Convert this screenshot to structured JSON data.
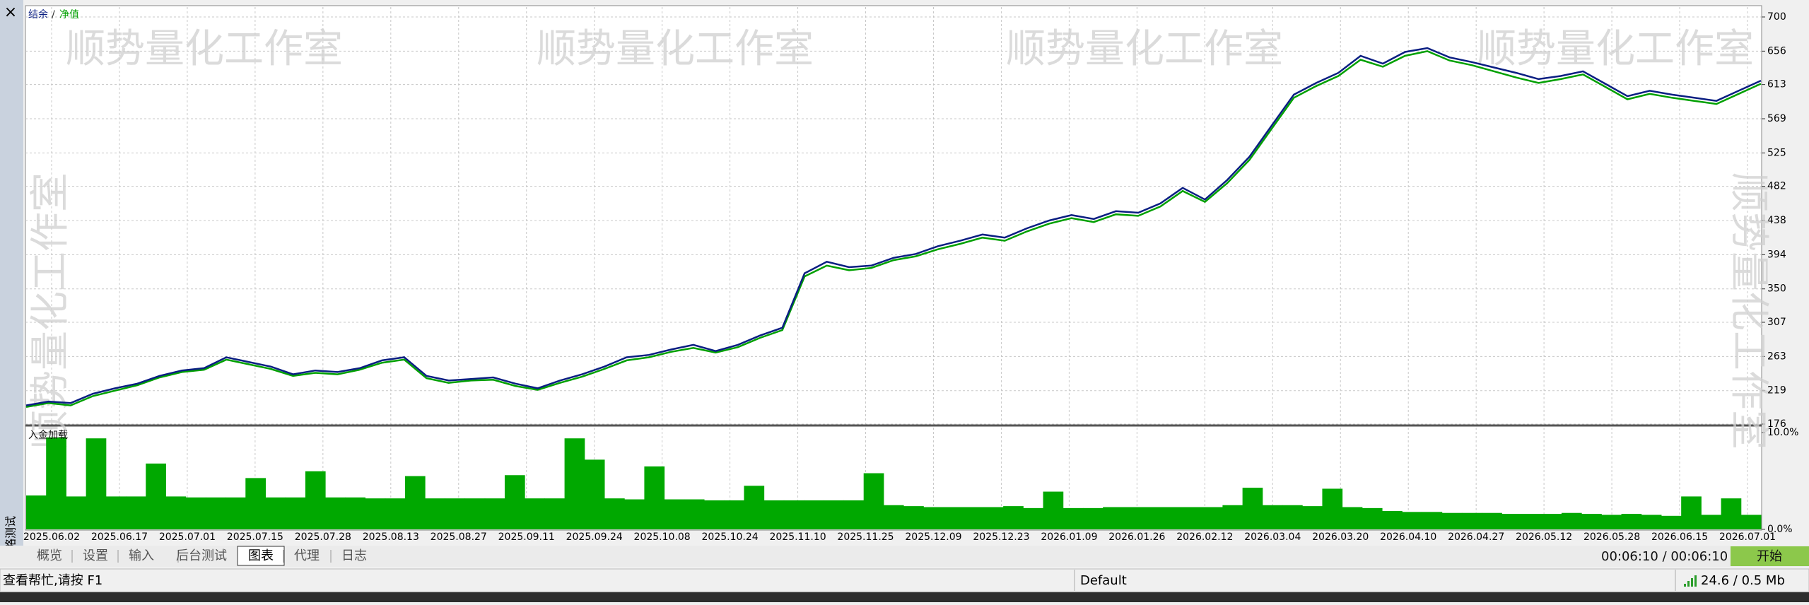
{
  "chart_data": {
    "type": "line",
    "legend": [
      "结余",
      "净值"
    ],
    "legend_separator": "/",
    "watermark": "顺势量化工作室",
    "x_labels": [
      "2025.06.02",
      "2025.06.17",
      "2025.07.01",
      "2025.07.15",
      "2025.07.28",
      "2025.08.13",
      "2025.08.27",
      "2025.09.11",
      "2025.09.24",
      "2025.10.08",
      "2025.10.24",
      "2025.11.10",
      "2025.11.25",
      "2025.12.09",
      "2025.12.23",
      "2026.01.09",
      "2026.01.26",
      "2026.02.12",
      "2026.03.04",
      "2026.03.20",
      "2026.04.10",
      "2026.04.27",
      "2026.05.12",
      "2026.05.28",
      "2026.06.15",
      "2026.07.01"
    ],
    "ylim": [
      176,
      700
    ],
    "yticks": [
      176,
      219,
      263,
      307,
      350,
      394,
      438,
      482,
      525,
      569,
      613,
      656,
      700
    ],
    "grid": true,
    "series": [
      {
        "name": "净值",
        "color": "#00a000",
        "values": [
          198,
          203,
          200,
          212,
          219,
          226,
          236,
          243,
          246,
          259,
          253,
          247,
          238,
          242,
          240,
          246,
          255,
          259,
          235,
          229,
          232,
          233,
          225,
          220,
          229,
          237,
          247,
          258,
          262,
          269,
          274,
          268,
          275,
          287,
          297,
          366,
          380,
          374,
          377,
          387,
          392,
          401,
          408,
          416,
          412,
          424,
          434,
          441,
          436,
          446,
          444,
          456,
          476,
          462,
          486,
          516,
          556,
          596,
          611,
          624,
          645,
          636,
          650,
          656,
          644,
          638,
          630,
          622,
          615,
          620,
          626,
          610,
          594,
          601,
          596,
          592,
          588,
          601,
          614
        ]
      },
      {
        "name": "结余",
        "color": "#0a1e82",
        "values": [
          200,
          205,
          203,
          215,
          222,
          228,
          238,
          245,
          248,
          262,
          256,
          250,
          240,
          245,
          243,
          248,
          258,
          262,
          238,
          232,
          234,
          236,
          228,
          222,
          232,
          240,
          250,
          262,
          265,
          272,
          278,
          270,
          278,
          290,
          300,
          370,
          385,
          378,
          380,
          390,
          395,
          405,
          412,
          420,
          416,
          428,
          438,
          445,
          440,
          450,
          448,
          460,
          480,
          465,
          490,
          520,
          560,
          600,
          615,
          628,
          650,
          640,
          655,
          660,
          648,
          642,
          635,
          628,
          620,
          624,
          630,
          614,
          598,
          605,
          600,
          596,
          592,
          605,
          618
        ]
      }
    ],
    "sub": {
      "title": "入金加载",
      "color": "#00a800",
      "y2lim": [
        0,
        10
      ],
      "y2ticks": [
        {
          "value": 0,
          "label": "0.0%"
        },
        {
          "value": 10,
          "label": "10.0%"
        }
      ],
      "values": [
        3.5,
        9.5,
        3.4,
        9.4,
        3.4,
        3.4,
        6.8,
        3.4,
        3.3,
        3.3,
        3.3,
        5.3,
        3.3,
        3.3,
        6.0,
        3.3,
        3.3,
        3.2,
        3.2,
        5.5,
        3.2,
        3.2,
        3.2,
        3.2,
        5.6,
        3.2,
        3.2,
        9.4,
        7.2,
        3.2,
        3.1,
        6.5,
        3.1,
        3.1,
        3.0,
        3.0,
        4.5,
        3.0,
        3.0,
        3.0,
        3.0,
        3.0,
        5.8,
        2.5,
        2.4,
        2.3,
        2.3,
        2.3,
        2.3,
        2.4,
        2.2,
        3.9,
        2.2,
        2.2,
        2.3,
        2.3,
        2.3,
        2.3,
        2.3,
        2.3,
        2.5,
        4.3,
        2.5,
        2.5,
        2.4,
        4.2,
        2.3,
        2.2,
        1.9,
        1.8,
        1.8,
        1.7,
        1.7,
        1.7,
        1.6,
        1.6,
        1.6,
        1.7,
        1.6,
        1.5,
        1.6,
        1.5,
        1.4,
        3.4,
        1.5,
        3.2,
        1.5
      ]
    }
  },
  "ui": {
    "close": "×",
    "side_tab": "策略测试",
    "tabs": [
      "概览",
      "设置",
      "输入",
      "后台测试",
      "图表",
      "代理",
      "日志"
    ],
    "active_tab": 4,
    "timer": "00:06:10 / 00:06:10",
    "start_button": "开始",
    "status": {
      "help": "查看帮忙,请按 F1",
      "profile": "Default",
      "traffic": "24.6 / 0.5 Mb"
    }
  }
}
